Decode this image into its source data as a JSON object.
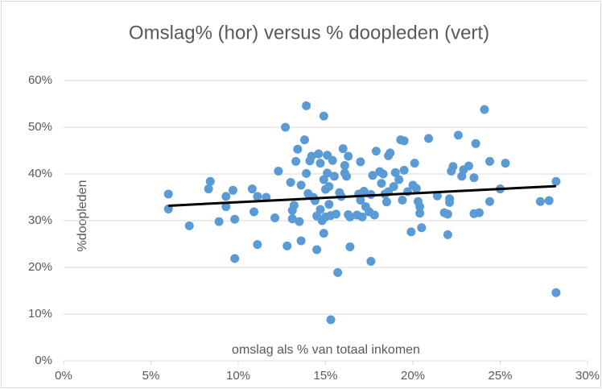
{
  "chart_data": {
    "type": "scatter",
    "title": "Omslag% (hor) versus % doopleden (vert)",
    "xlabel": "omslag als % van totaal inkomen",
    "ylabel": "%doopleden",
    "xlim": [
      0,
      30
    ],
    "ylim": [
      0,
      60
    ],
    "xticks": [
      {
        "value": 0,
        "label": "0%"
      },
      {
        "value": 5,
        "label": "5%"
      },
      {
        "value": 10,
        "label": "10%"
      },
      {
        "value": 15,
        "label": "15%"
      },
      {
        "value": 20,
        "label": "20%"
      },
      {
        "value": 25,
        "label": "25%"
      },
      {
        "value": 30,
        "label": "30%"
      }
    ],
    "yticks": [
      {
        "value": 0,
        "label": "0%"
      },
      {
        "value": 10,
        "label": "10%"
      },
      {
        "value": 20,
        "label": "20%"
      },
      {
        "value": 30,
        "label": "30%"
      },
      {
        "value": 40,
        "label": "40%"
      },
      {
        "value": 50,
        "label": "50%"
      },
      {
        "value": 60,
        "label": "60%"
      }
    ],
    "grid": true,
    "series": [
      {
        "type": "scatter",
        "color": "#5b9bd5",
        "x": [
          6.0,
          6.0,
          7.2,
          8.4,
          8.3,
          8.9,
          9.3,
          9.3,
          9.7,
          9.8,
          9.8,
          10.8,
          10.9,
          11.1,
          11.1,
          11.6,
          12.3,
          12.1,
          12.7,
          12.8,
          13.0,
          13.1,
          13.1,
          13.2,
          13.3,
          13.4,
          13.5,
          13.6,
          13.6,
          13.8,
          13.9,
          13.9,
          14.0,
          14.1,
          14.2,
          14.3,
          14.4,
          14.5,
          14.5,
          14.6,
          14.7,
          14.7,
          14.8,
          14.9,
          14.9,
          14.9,
          15.0,
          15.0,
          15.1,
          15.1,
          15.2,
          15.2,
          15.3,
          15.3,
          15.4,
          15.5,
          15.6,
          15.7,
          15.8,
          15.9,
          16.0,
          16.1,
          16.1,
          16.2,
          16.3,
          16.3,
          16.4,
          16.4,
          16.8,
          16.9,
          17.0,
          17.0,
          17.1,
          17.2,
          17.3,
          17.5,
          17.6,
          17.6,
          17.7,
          17.8,
          17.9,
          18.1,
          18.2,
          18.3,
          18.4,
          18.5,
          18.6,
          18.6,
          18.7,
          18.9,
          19.0,
          19.2,
          19.3,
          19.4,
          19.5,
          19.5,
          19.7,
          19.9,
          20.0,
          20.1,
          20.2,
          20.3,
          20.4,
          20.4,
          20.5,
          20.9,
          21.4,
          21.8,
          22.0,
          22.0,
          22.1,
          22.1,
          22.2,
          22.3,
          22.6,
          22.8,
          22.9,
          23.2,
          23.5,
          23.5,
          23.6,
          23.8,
          24.1,
          24.4,
          24.4,
          25.0,
          25.3,
          27.3,
          27.8,
          28.2,
          28.2
        ],
        "values": [
          35.7,
          32.5,
          28.9,
          38.4,
          36.8,
          29.8,
          33.0,
          35.2,
          36.5,
          30.3,
          21.9,
          36.8,
          31.9,
          35.2,
          24.9,
          35.0,
          40.6,
          30.6,
          50.0,
          24.6,
          38.2,
          32.2,
          30.4,
          33.3,
          42.7,
          45.3,
          29.8,
          25.7,
          37.6,
          47.3,
          54.6,
          40.1,
          35.8,
          42.8,
          43.8,
          35.0,
          34.3,
          31.0,
          23.8,
          44.3,
          42.3,
          32.4,
          30.0,
          38.8,
          52.4,
          27.3,
          30.8,
          36.7,
          40.2,
          44.0,
          37.3,
          33.5,
          31.1,
          8.8,
          42.9,
          39.5,
          31.4,
          18.9,
          36.0,
          35.2,
          45.4,
          41.8,
          40.2,
          39.5,
          43.8,
          31.3,
          30.8,
          24.4,
          31.2,
          35.7,
          42.6,
          34.4,
          30.8,
          36.3,
          33.0,
          31.9,
          21.3,
          35.6,
          39.7,
          31.2,
          44.9,
          40.5,
          38.0,
          40.0,
          35.7,
          34.0,
          36.2,
          43.9,
          44.5,
          37.3,
          40.3,
          38.8,
          47.3,
          34.4,
          40.8,
          47.1,
          36.2,
          27.6,
          37.6,
          42.3,
          36.9,
          34.1,
          33.0,
          31.6,
          28.5,
          47.6,
          35.3,
          31.7,
          27.0,
          31.4,
          33.9,
          34.7,
          40.6,
          41.6,
          48.3,
          39.5,
          40.9,
          41.7,
          31.5,
          39.2,
          46.5,
          31.7,
          53.8,
          42.7,
          34.1,
          36.8,
          42.3,
          34.1,
          34.3,
          38.4,
          14.6
        ]
      },
      {
        "type": "line",
        "color": "#000000",
        "x": [
          6.0,
          28.2
        ],
        "values": [
          33.2,
          37.4
        ]
      }
    ]
  }
}
